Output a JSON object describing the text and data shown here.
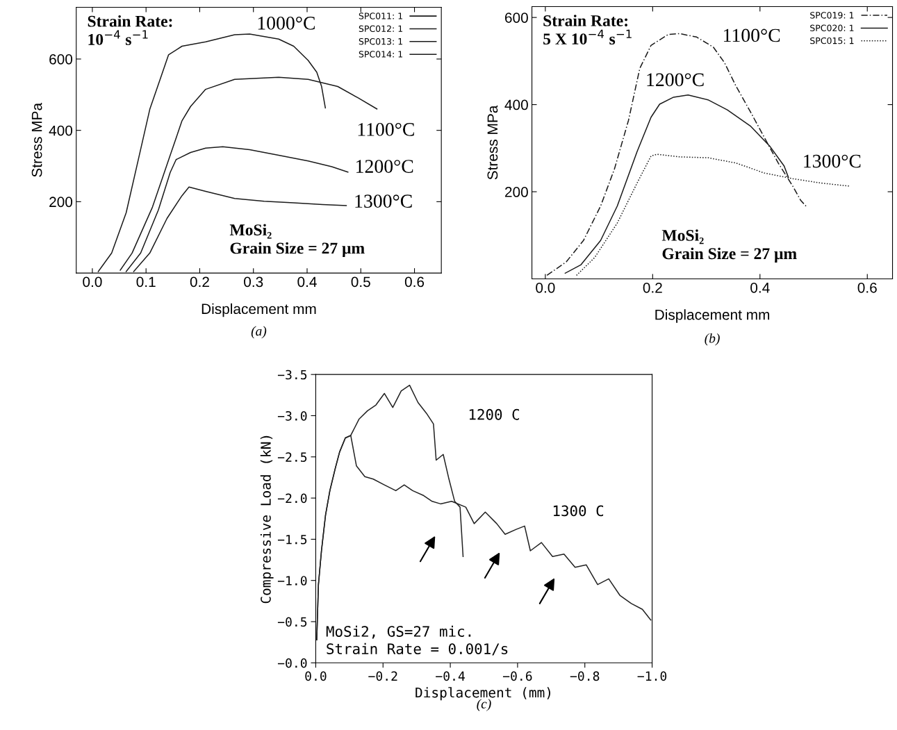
{
  "chart_data": [
    {
      "type": "line",
      "xlabel": "Displacement mm",
      "ylabel": "Stress MPa",
      "xlim": [
        -0.03,
        0.65
      ],
      "ylim": [
        0,
        745
      ],
      "xticks": [
        {
          "value": 0,
          "label": "0.0"
        },
        0.1,
        0.2,
        0.3,
        0.4,
        0.5,
        0.6
      ],
      "yticks": [
        200,
        400,
        600
      ],
      "legend": "top right",
      "grid": false,
      "series": [
        {
          "name": "SPC011: 1",
          "color": "#1a1a1a",
          "line_style": "solid",
          "x": [
            0.011,
            0.036,
            0.063,
            0.085,
            0.107,
            0.129,
            0.142,
            0.167,
            0.211,
            0.265,
            0.293,
            0.347,
            0.375,
            0.402,
            0.418,
            0.427,
            0.434
          ],
          "values": [
            4,
            56,
            169,
            314,
            459,
            555,
            612,
            636,
            648,
            668,
            670,
            656,
            636,
            596,
            563,
            523,
            463
          ]
        },
        {
          "name": "SPC012: 1",
          "color": "#1a1a1a",
          "line_style": "solid",
          "x": [
            0.052,
            0.074,
            0.112,
            0.145,
            0.167,
            0.183,
            0.211,
            0.265,
            0.347,
            0.402,
            0.457,
            0.495,
            0.53
          ],
          "values": [
            8,
            56,
            185,
            330,
            427,
            467,
            515,
            543,
            549,
            543,
            523,
            491,
            460
          ]
        },
        {
          "name": "SPC013: 1",
          "color": "#1a1a1a",
          "line_style": "solid",
          "x": [
            0.063,
            0.09,
            0.123,
            0.145,
            0.156,
            0.183,
            0.211,
            0.243,
            0.293,
            0.347,
            0.402,
            0.446,
            0.476
          ],
          "values": [
            4,
            56,
            177,
            282,
            318,
            338,
            350,
            354,
            346,
            330,
            314,
            298,
            283
          ]
        },
        {
          "name": "SPC014: 1",
          "color": "#1a1a1a",
          "line_style": "solid",
          "x": [
            0.077,
            0.107,
            0.139,
            0.167,
            0.18,
            0.211,
            0.265,
            0.32,
            0.375,
            0.429,
            0.473
          ],
          "values": [
            4,
            56,
            153,
            217,
            241,
            229,
            209,
            201,
            197,
            192,
            189
          ]
        }
      ],
      "annotations": [
        "1000°C",
        "1100°C",
        "1200°C",
        "1300°C",
        "Strain Rate:\n10$^{−4}$ s$^{−1}$",
        "MoSi₂\nGrain Size = 27 μm",
        "(a)"
      ]
    },
    {
      "type": "line",
      "xlabel": "Displacement mm",
      "ylabel": "Stress MPa",
      "xlim": [
        -0.025,
        0.647
      ],
      "ylim": [
        0,
        625
      ],
      "xticks": [
        {
          "value": 0,
          "label": "0.0"
        },
        0.2,
        0.4,
        0.6
      ],
      "yticks": [
        200,
        400,
        600
      ],
      "legend": "top right",
      "grid": false,
      "series": [
        {
          "name": "SPC019: 1",
          "color": "#1a1a1a",
          "line_style": "dashed",
          "x": [
            0.003,
            0.039,
            0.071,
            0.103,
            0.129,
            0.155,
            0.176,
            0.197,
            0.229,
            0.25,
            0.282,
            0.313,
            0.334,
            0.355,
            0.382,
            0.408,
            0.434,
            0.461,
            0.476,
            0.488
          ],
          "values": [
            8,
            39,
            88,
            167,
            253,
            364,
            483,
            536,
            561,
            563,
            555,
            532,
            496,
            443,
            384,
            325,
            266,
            213,
            180,
            164
          ]
        },
        {
          "name": "SPC020: 1",
          "color": "#1a1a1a",
          "line_style": "solid",
          "x": [
            0.037,
            0.066,
            0.103,
            0.134,
            0.171,
            0.197,
            0.213,
            0.239,
            0.266,
            0.303,
            0.339,
            0.382,
            0.418,
            0.445,
            0.453
          ],
          "values": [
            13,
            32,
            88,
            167,
            292,
            371,
            401,
            417,
            422,
            411,
            388,
            351,
            305,
            259,
            233
          ]
        },
        {
          "name": "SPC015: 1",
          "color": "#1a1a1a",
          "line_style": "dotted",
          "x": [
            0.058,
            0.092,
            0.134,
            0.171,
            0.197,
            0.208,
            0.25,
            0.303,
            0.355,
            0.408,
            0.461,
            0.513,
            0.566
          ],
          "values": [
            8,
            49,
            128,
            220,
            282,
            286,
            280,
            278,
            266,
            243,
            230,
            220,
            213
          ]
        }
      ],
      "annotations": [
        "1100°C",
        "1200°C",
        "1300°C",
        "Strain Rate:\n5 X 10$^{−4}$ s$^{−1}$",
        "MoSi₂\nGrain Size = 27 μm",
        "(b)"
      ]
    },
    {
      "type": "line",
      "xlabel": "Displacement (mm)",
      "ylabel": "Compressive Load (kN)",
      "xlim": [
        0,
        -1.0
      ],
      "ylim": [
        0,
        -3.5
      ],
      "xticks": [
        {
          "value": 0,
          "label": "0.0"
        },
        {
          "value": -0.2,
          "label": "−0.2"
        },
        {
          "value": -0.4,
          "label": "−0.4"
        },
        {
          "value": -0.6,
          "label": "−0.6"
        },
        {
          "value": -0.8,
          "label": "−0.8"
        },
        {
          "value": -1.0,
          "label": "−1.0"
        }
      ],
      "yticks": [
        {
          "value": 0,
          "label": "−0.0"
        },
        {
          "value": -0.5,
          "label": "−0.5"
        },
        {
          "value": -1.0,
          "label": "−1.0"
        },
        {
          "value": -1.5,
          "label": "−1.5"
        },
        {
          "value": -2.0,
          "label": "−2.0"
        },
        {
          "value": -2.5,
          "label": "−2.5"
        },
        {
          "value": -3.0,
          "label": "−3.0"
        },
        {
          "value": -3.5,
          "label": "−3.5"
        }
      ],
      "grid": false,
      "series": [
        {
          "color": "#222222",
          "line_style": "solid",
          "x": [
            -0.003,
            -0.008,
            -0.017,
            -0.029,
            -0.042,
            -0.058,
            -0.071,
            -0.088,
            -0.104,
            -0.129,
            -0.154,
            -0.179,
            -0.204,
            -0.229,
            -0.254,
            -0.279,
            -0.304,
            -0.329,
            -0.35,
            -0.358,
            -0.379,
            -0.396,
            -0.413,
            -0.429,
            -0.438
          ],
          "values": [
            -0.28,
            -0.95,
            -1.36,
            -1.79,
            -2.09,
            -2.36,
            -2.56,
            -2.73,
            -2.76,
            -2.96,
            -3.06,
            -3.13,
            -3.27,
            -3.1,
            -3.3,
            -3.37,
            -3.16,
            -3.03,
            -2.9,
            -2.46,
            -2.53,
            -2.23,
            -1.96,
            -1.89,
            -1.29
          ]
        },
        {
          "color": "#222222",
          "line_style": "solid",
          "x": [
            -0.003,
            -0.008,
            -0.017,
            -0.029,
            -0.042,
            -0.058,
            -0.071,
            -0.088,
            -0.104,
            -0.121,
            -0.146,
            -0.171,
            -0.204,
            -0.238,
            -0.263,
            -0.288,
            -0.321,
            -0.346,
            -0.371,
            -0.404,
            -0.446,
            -0.471,
            -0.504,
            -0.538,
            -0.563,
            -0.596,
            -0.621,
            -0.638,
            -0.671,
            -0.704,
            -0.738,
            -0.771,
            -0.804,
            -0.838,
            -0.871,
            -0.904,
            -0.938,
            -0.971,
            -0.996
          ],
          "values": [
            -0.28,
            -0.95,
            -1.36,
            -1.79,
            -2.09,
            -2.36,
            -2.56,
            -2.73,
            -2.76,
            -2.39,
            -2.26,
            -2.23,
            -2.16,
            -2.09,
            -2.16,
            -2.09,
            -2.03,
            -1.96,
            -1.93,
            -1.96,
            -1.89,
            -1.69,
            -1.83,
            -1.69,
            -1.56,
            -1.62,
            -1.66,
            -1.36,
            -1.46,
            -1.29,
            -1.32,
            -1.16,
            -1.19,
            -0.95,
            -1.02,
            -0.82,
            -0.72,
            -0.65,
            -0.52
          ]
        }
      ],
      "annotations": [
        "1200 C",
        "1300 C",
        "MoSi2, GS=27 mic.\nStrain Rate = 0.001/s",
        "(c)"
      ]
    }
  ]
}
